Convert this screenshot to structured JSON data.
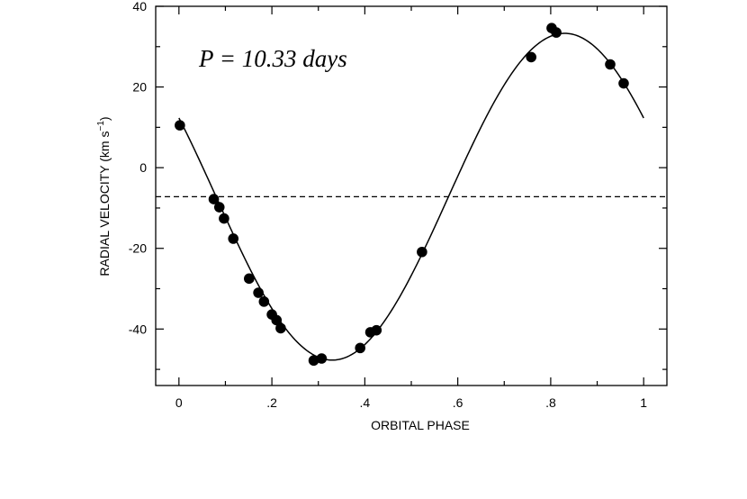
{
  "chart_data": {
    "type": "scatter",
    "annotation": "P = 10.33 days",
    "xlabel": "ORBITAL PHASE",
    "ylabel_main": "RADIAL  VELOCITY  (km  s",
    "ylabel_sup": "−1",
    "ylabel_close": ")",
    "xlim": [
      -0.05,
      1.05
    ],
    "ylim": [
      -54,
      40
    ],
    "x_ticks": [
      {
        "value": 0,
        "label": "0"
      },
      {
        "value": 0.2,
        "label": ".2"
      },
      {
        "value": 0.4,
        "label": ".4"
      },
      {
        "value": 0.6,
        "label": ".6"
      },
      {
        "value": 0.8,
        "label": ".8"
      },
      {
        "value": 1.0,
        "label": "1"
      }
    ],
    "y_ticks": [
      {
        "value": 40,
        "label": "40"
      },
      {
        "value": 20,
        "label": "20"
      },
      {
        "value": 0,
        "label": "0"
      },
      {
        "value": -20,
        "label": "-20"
      },
      {
        "value": -40,
        "label": "-40"
      }
    ],
    "systemic_velocity": -7.2,
    "orbit_curve": {
      "gamma": -7.2,
      "K": 40.5,
      "phase_at_max": 0.83,
      "phase_range": [
        0.0,
        1.0
      ]
    },
    "observations": [
      {
        "x": 0.002,
        "y": 10.5
      },
      {
        "x": 0.075,
        "y": -7.8
      },
      {
        "x": 0.087,
        "y": -9.8
      },
      {
        "x": 0.097,
        "y": -12.6
      },
      {
        "x": 0.117,
        "y": -17.6
      },
      {
        "x": 0.151,
        "y": -27.5
      },
      {
        "x": 0.171,
        "y": -31.0
      },
      {
        "x": 0.183,
        "y": -33.2
      },
      {
        "x": 0.2,
        "y": -36.4
      },
      {
        "x": 0.21,
        "y": -37.8
      },
      {
        "x": 0.219,
        "y": -39.8
      },
      {
        "x": 0.29,
        "y": -47.8
      },
      {
        "x": 0.307,
        "y": -47.3
      },
      {
        "x": 0.39,
        "y": -44.7
      },
      {
        "x": 0.412,
        "y": -40.8
      },
      {
        "x": 0.425,
        "y": -40.3
      },
      {
        "x": 0.523,
        "y": -20.9
      },
      {
        "x": 0.758,
        "y": 27.4
      },
      {
        "x": 0.802,
        "y": 34.6
      },
      {
        "x": 0.812,
        "y": 33.5
      },
      {
        "x": 0.928,
        "y": 25.6
      },
      {
        "x": 0.957,
        "y": 20.9
      }
    ],
    "grid": false,
    "colors": {
      "axes": "#000000",
      "points": "#000000",
      "curve": "#000000",
      "background": "#ffffff"
    }
  }
}
